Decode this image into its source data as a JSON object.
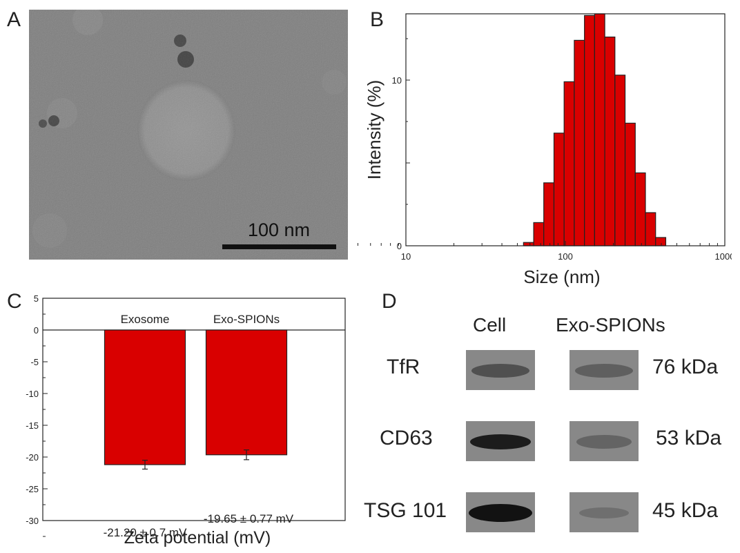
{
  "panels": {
    "a": "A",
    "b": "B",
    "c": "C",
    "d": "D"
  },
  "tem": {
    "scale_bar_label": "100 nm"
  },
  "colors": {
    "bar_fill": "#d90000",
    "bar_stroke": "#222222",
    "axis": "#222222"
  },
  "chart_data": [
    {
      "type": "bar",
      "panel": "B",
      "xlabel": "Size (nm)",
      "ylabel": "Intensity (%)",
      "x_scale": "log",
      "xlim": [
        10,
        1000
      ],
      "ylim": [
        0,
        14
      ],
      "x_tick_labels": [
        "10",
        "100",
        "1000"
      ],
      "y_tick_labels": [
        "0",
        "10"
      ],
      "x": [
        58.8,
        68.1,
        78.8,
        91.3,
        105.7,
        122.4,
        141.8,
        164.2,
        190.1,
        220.2,
        255,
        295.3,
        342,
        396.1
      ],
      "values": [
        0.2,
        1.4,
        3.8,
        6.8,
        9.9,
        12.4,
        13.9,
        14.0,
        12.6,
        10.3,
        7.4,
        4.4,
        2.0,
        0.5
      ]
    },
    {
      "type": "bar",
      "panel": "C",
      "xlabel": "Zeta potential (mV)",
      "ylabel": "",
      "ylim": [
        -30,
        5
      ],
      "y_tick_labels": [
        "5",
        "0",
        "-5",
        "-10",
        "-15",
        "-20",
        "-25",
        "-30"
      ],
      "categories": [
        "Exosome",
        "Exo-SPIONs"
      ],
      "values": [
        -21.2,
        -19.65
      ],
      "errors": [
        0.7,
        0.77
      ],
      "annotations": [
        "-21.20 ± 0.7 mV",
        "-19.65 ± 0.77 mV"
      ]
    }
  ],
  "western_blot": {
    "columns": [
      "Cell",
      "Exo-SPIONs"
    ],
    "rows": [
      {
        "protein": "TfR",
        "size": "76 kDa",
        "cell_intensity": 0.55,
        "exo_intensity": 0.4
      },
      {
        "protein": "CD63",
        "size": "53 kDa",
        "cell_intensity": 0.9,
        "exo_intensity": 0.35
      },
      {
        "protein": "TSG 101",
        "size": "45 kDa",
        "cell_intensity": 0.95,
        "exo_intensity": 0.25
      }
    ]
  }
}
